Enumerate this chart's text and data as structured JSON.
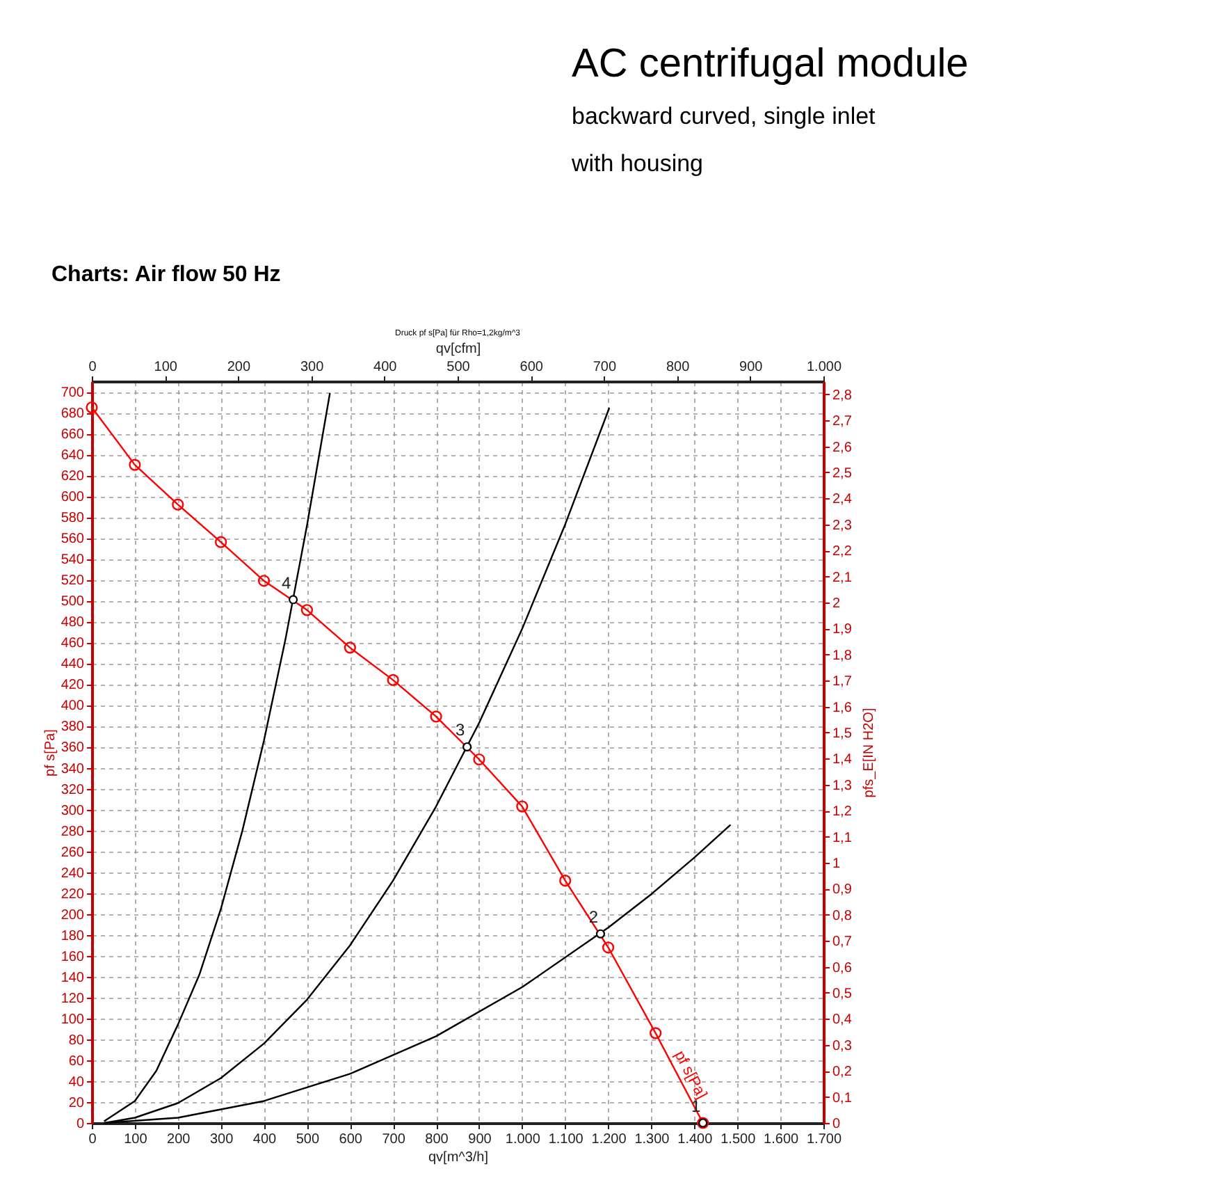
{
  "chart_data": {
    "type": "line",
    "title": "AC centrifugal module",
    "subtitle": "backward curved, single inlet",
    "xlabel": "qv[m^3/h]",
    "x2label": "qv[cfm]",
    "ylabel": "pf s[Pa]",
    "y2label": "pfs_E[IN H2O]",
    "annotations": [
      "with housing",
      "Charts: Air flow 50 Hz",
      "Druck pf s[Pa] für Rho=1,2kg/m^3",
      {
        "text": "1",
        "x": 1420,
        "y": 0
      },
      {
        "text": "2",
        "x": 1182,
        "y": 181
      },
      {
        "text": "3",
        "x": 872,
        "y": 360
      },
      {
        "text": "4",
        "x": 468,
        "y": 501
      }
    ],
    "series": [
      {
        "name": "pf s[Pa]",
        "color": "#ff0000",
        "marker": "circle",
        "x": [
          0,
          100,
          200,
          300,
          400,
          500,
          600,
          700,
          800,
          900,
          1000,
          1100,
          1200,
          1310,
          1420
        ],
        "values": [
          685,
          630,
          592,
          556,
          519,
          491,
          455,
          424,
          389,
          348,
          303,
          232,
          168,
          86,
          0
        ]
      },
      {
        "color": "#000000",
        "marker": "none",
        "x": [
          30,
          100,
          150,
          200,
          250,
          300,
          350,
          400,
          450,
          500,
          553
        ],
        "values": [
          2,
          21,
          50,
          94,
          142,
          205,
          280,
          366,
          463,
          572,
          698
        ]
      },
      {
        "color": "#000000",
        "marker": "none",
        "x": [
          30,
          100,
          200,
          300,
          400,
          500,
          600,
          700,
          800,
          900,
          1000,
          1100,
          1202
        ],
        "values": [
          0,
          5,
          19,
          43,
          76,
          118,
          170,
          232,
          303,
          383,
          473,
          573,
          684
        ]
      },
      {
        "color": "#000000",
        "marker": "none",
        "x": [
          30,
          200,
          400,
          600,
          800,
          1000,
          1200,
          1300,
          1400,
          1483
        ],
        "values": [
          0,
          5,
          21,
          47,
          83,
          130,
          187,
          219,
          254,
          285
        ]
      },
      {
        "type": "scatter",
        "color": "#000000",
        "marker": "circle",
        "x": [
          1420,
          1182,
          872,
          468
        ],
        "values": [
          0,
          181,
          360,
          501
        ]
      }
    ],
    "xlim": [
      0,
      1700
    ],
    "xticks": [
      0,
      100,
      200,
      300,
      400,
      500,
      600,
      700,
      800,
      900,
      {
        "value": 1000,
        "label": "1.000"
      },
      {
        "value": 1100,
        "label": "1.100"
      },
      {
        "value": 1200,
        "label": "1.200"
      },
      {
        "value": 1300,
        "label": "1.300"
      },
      {
        "value": 1400,
        "label": "1.400"
      },
      {
        "value": 1500,
        "label": "1.500"
      },
      {
        "value": 1600,
        "label": "1.600"
      },
      {
        "value": 1700,
        "label": "1.700"
      }
    ],
    "x2lim": [
      0,
      1000
    ],
    "x2ticks": [
      0,
      100,
      200,
      300,
      400,
      500,
      600,
      700,
      800,
      900,
      {
        "value": 1000,
        "label": "1.000"
      }
    ],
    "ylim": [
      0,
      710
    ],
    "yticks": [
      0,
      20,
      40,
      60,
      80,
      100,
      120,
      140,
      160,
      180,
      200,
      220,
      240,
      260,
      280,
      300,
      320,
      340,
      360,
      380,
      400,
      420,
      440,
      460,
      480,
      500,
      520,
      540,
      560,
      580,
      600,
      620,
      640,
      660,
      680,
      700
    ],
    "y2lim": [
      0,
      2.85
    ],
    "y2ticks": [
      0,
      {
        "value": 0.1,
        "label": "0,1"
      },
      {
        "value": 0.2,
        "label": "0,2"
      },
      {
        "value": 0.3,
        "label": "0,3"
      },
      {
        "value": 0.4,
        "label": "0,4"
      },
      {
        "value": 0.5,
        "label": "0,5"
      },
      {
        "value": 0.6,
        "label": "0,6"
      },
      {
        "value": 0.7,
        "label": "0,7"
      },
      {
        "value": 0.8,
        "label": "0,8"
      },
      {
        "value": 0.9,
        "label": "0,9"
      },
      1,
      {
        "value": 1.1,
        "label": "1,1"
      },
      {
        "value": 1.2,
        "label": "1,2"
      },
      {
        "value": 1.3,
        "label": "1,3"
      },
      {
        "value": 1.4,
        "label": "1,4"
      },
      {
        "value": 1.5,
        "label": "1,5"
      },
      {
        "value": 1.6,
        "label": "1,6"
      },
      {
        "value": 1.7,
        "label": "1,7"
      },
      {
        "value": 1.8,
        "label": "1,8"
      },
      {
        "value": 1.9,
        "label": "1,9"
      },
      2,
      {
        "value": 2.1,
        "label": "2,1"
      },
      {
        "value": 2.2,
        "label": "2,2"
      },
      {
        "value": 2.3,
        "label": "2,3"
      },
      {
        "value": 2.4,
        "label": "2,4"
      },
      {
        "value": 2.5,
        "label": "2,5"
      },
      {
        "value": 2.6,
        "label": "2,6"
      },
      {
        "value": 2.7,
        "label": "2,7"
      },
      {
        "value": 2.8,
        "label": "2,8"
      }
    ],
    "grid": true,
    "line_style": "solid"
  }
}
